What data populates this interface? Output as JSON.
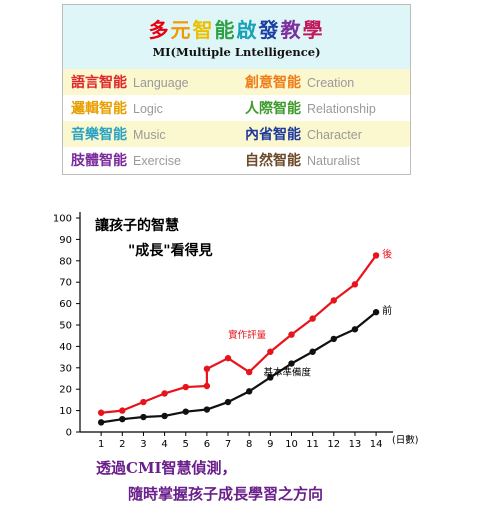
{
  "mi_table": {
    "title_chars": [
      "多",
      "元",
      "智",
      "能",
      "啟",
      "發",
      "教",
      "學"
    ],
    "title_colors": [
      "#e60012",
      "#f39800",
      "#eac000",
      "#2ea043",
      "#1aa1b8",
      "#1d3fa0",
      "#7b2e9c",
      "#c2185b"
    ],
    "subtitle": "MI(Multiple Lntelligence)",
    "rows": [
      {
        "left": {
          "zh": "語言智能",
          "en": "Language",
          "color": "#e0262b"
        },
        "right": {
          "zh": "創意智能",
          "en": "Creation",
          "color": "#ef7d1a"
        }
      },
      {
        "left": {
          "zh": "邏輯智能",
          "en": "Logic",
          "color": "#e8a000"
        },
        "right": {
          "zh": "人際智能",
          "en": "Relationship",
          "color": "#3f9a2c"
        }
      },
      {
        "left": {
          "zh": "音樂智能",
          "en": "Music",
          "color": "#2aa3c2"
        },
        "right": {
          "zh": "內省智能",
          "en": "Character",
          "color": "#1e3a9a"
        }
      },
      {
        "left": {
          "zh": "肢體智能",
          "en": "Exercise",
          "color": "#7a2a9a"
        },
        "right": {
          "zh": "自然智能",
          "en": "Naturalist",
          "color": "#6b4a2a"
        }
      }
    ]
  },
  "chart_data": {
    "type": "line",
    "title_line1": "讓孩子的智慧",
    "title_line2": "\"成長\"看得見",
    "x_unit_label": "(日數)",
    "x_ticks": [
      1,
      2,
      3,
      4,
      5,
      6,
      7,
      8,
      9,
      10,
      11,
      12,
      13,
      14
    ],
    "y_ticks": [
      0,
      10,
      20,
      30,
      40,
      50,
      60,
      70,
      80,
      90,
      100
    ],
    "xlim": [
      0,
      14.8
    ],
    "ylim": [
      0,
      100
    ],
    "grid": false,
    "series": [
      {
        "name": "實作評量",
        "end_label": "後",
        "color": "#e8141c",
        "points": [
          [
            1,
            9
          ],
          [
            2,
            10
          ],
          [
            3,
            14
          ],
          [
            4,
            18
          ],
          [
            5,
            21
          ],
          [
            6,
            21.5
          ],
          [
            6,
            29.5
          ],
          [
            7,
            34.5
          ],
          [
            8,
            28
          ],
          [
            9,
            37.5
          ],
          [
            10,
            45.5
          ],
          [
            11,
            53
          ],
          [
            12,
            61.5
          ],
          [
            13,
            69
          ],
          [
            14,
            82.5
          ]
        ]
      },
      {
        "name": "基本準備度",
        "end_label": "前",
        "color": "#111111",
        "points": [
          [
            1,
            4.5
          ],
          [
            2,
            6
          ],
          [
            3,
            7
          ],
          [
            4,
            7.5
          ],
          [
            5,
            9.5
          ],
          [
            6,
            10.5
          ],
          [
            7,
            14
          ],
          [
            8,
            19
          ],
          [
            9,
            25.5
          ],
          [
            10,
            32
          ],
          [
            11,
            37.5
          ],
          [
            12,
            43.5
          ],
          [
            13,
            48
          ],
          [
            14,
            56
          ]
        ]
      }
    ]
  },
  "caption": {
    "line1": "透過CMI智慧偵測，",
    "line2": "隨時掌握孩子成長學習之方向"
  }
}
